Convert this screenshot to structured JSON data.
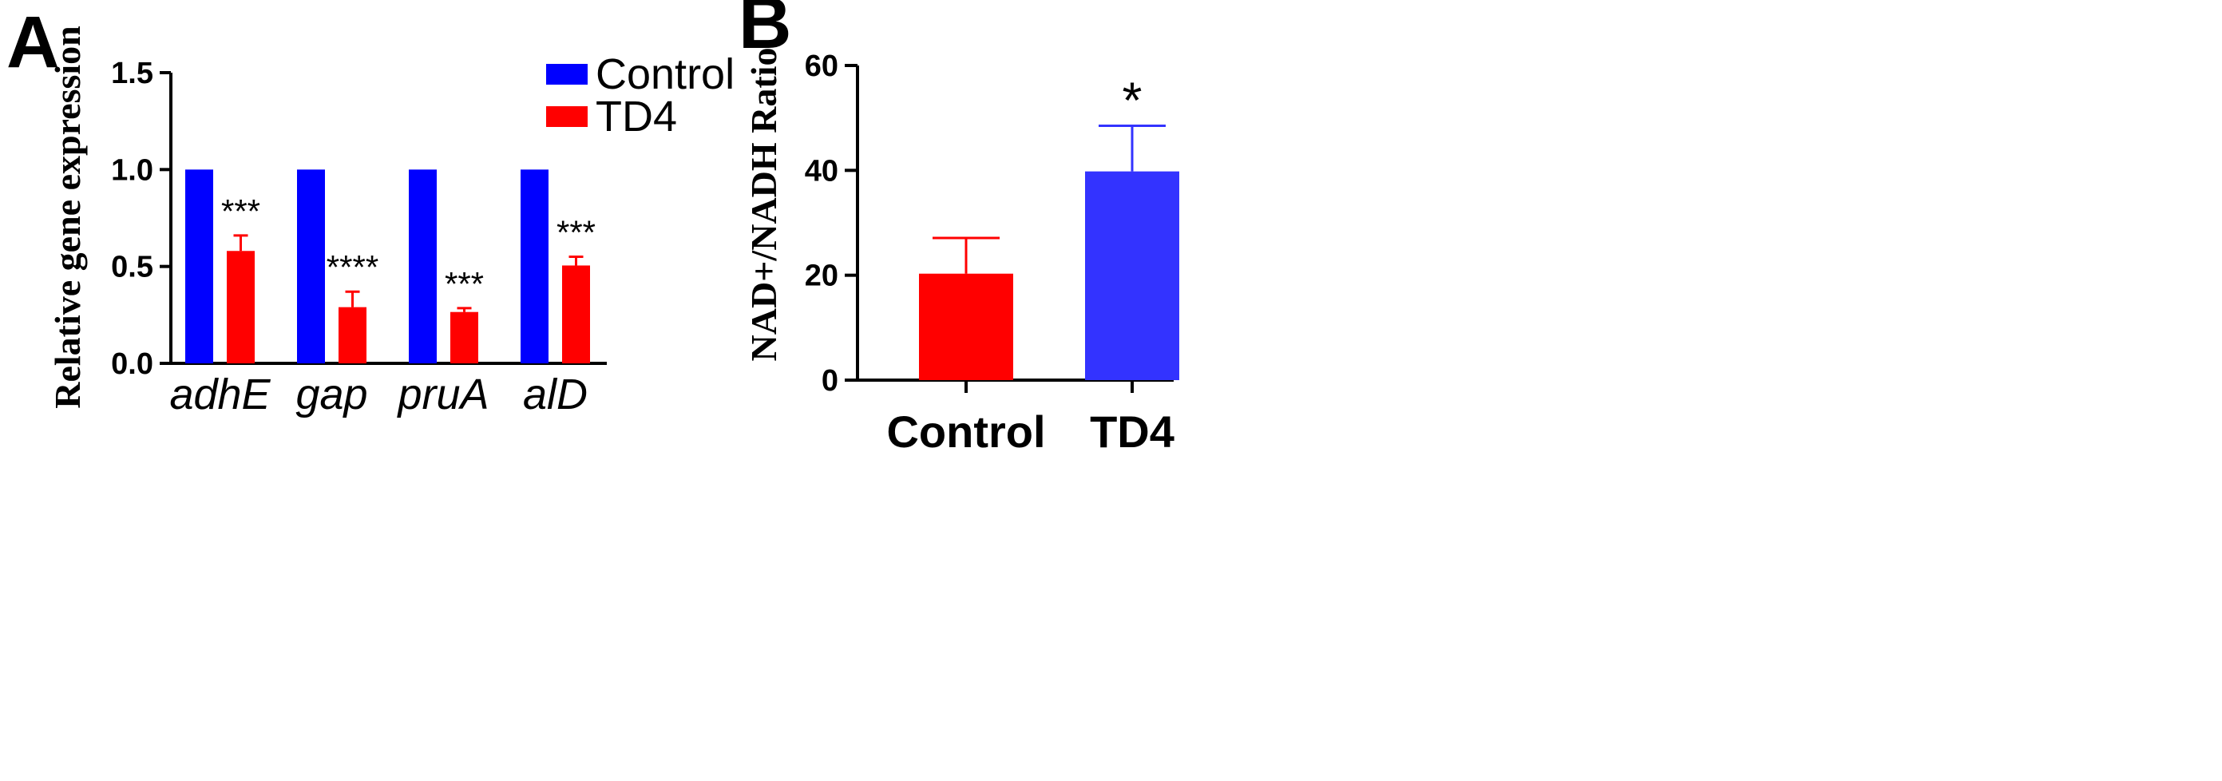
{
  "chart_data": [
    {
      "panel": "A",
      "type": "bar",
      "title": "",
      "xlabel": "",
      "ylabel": "Relative gene expression",
      "ylim": [
        0,
        1.5
      ],
      "yticks": [
        "0.0",
        "0.5",
        "1.0",
        "1.5"
      ],
      "ytick_values": [
        0,
        0.5,
        1.0,
        1.5
      ],
      "categories": [
        "adhE",
        "gap",
        "pruA",
        "alD"
      ],
      "series": [
        {
          "name": "Control",
          "color": "#0000ff",
          "values": [
            1.0,
            1.0,
            1.0,
            1.0
          ],
          "errors": [
            0,
            0,
            0,
            0
          ]
        },
        {
          "name": "TD4",
          "color": "#ff0000",
          "values": [
            0.58,
            0.29,
            0.265,
            0.505
          ],
          "errors": [
            0.08,
            0.08,
            0.02,
            0.045
          ]
        }
      ],
      "significance": [
        "***",
        "****",
        "***",
        "***"
      ],
      "legend": {
        "placement": "top-right",
        "entries": [
          "Control",
          "TD4"
        ]
      }
    },
    {
      "panel": "B",
      "type": "bar",
      "title": "",
      "xlabel": "",
      "ylabel": "NAD+/NADH Ratio",
      "ylim": [
        0,
        60
      ],
      "yticks": [
        "0",
        "20",
        "40",
        "60"
      ],
      "ytick_values": [
        0,
        20,
        40,
        60
      ],
      "categories": [
        "Control",
        "TD4"
      ],
      "values": [
        20.3,
        39.8
      ],
      "errors": [
        6.8,
        8.7
      ],
      "colors": [
        "#ff0000",
        "#3333ff"
      ],
      "significance": [
        "",
        "*"
      ]
    }
  ]
}
